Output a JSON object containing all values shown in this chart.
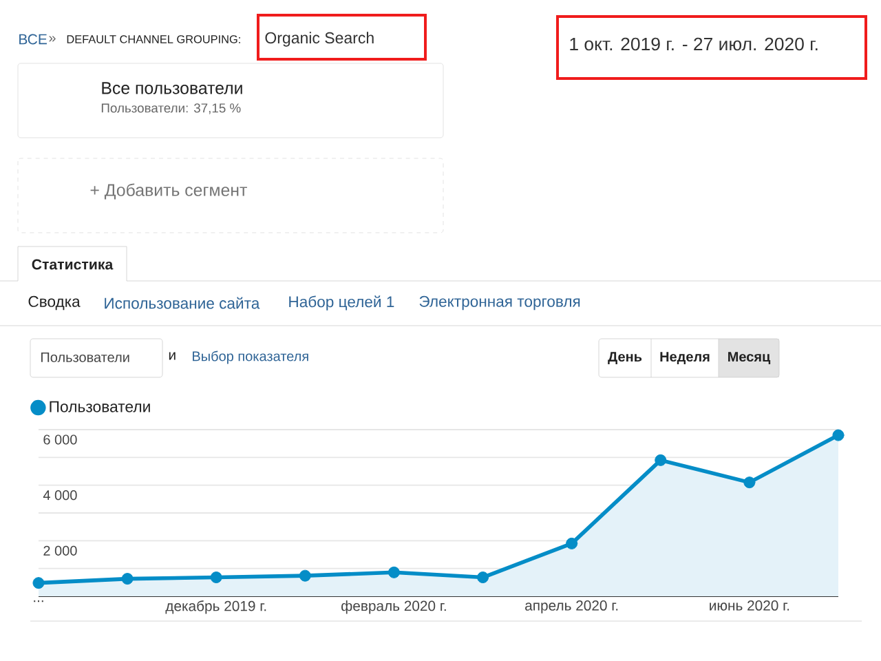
{
  "chart_data": {
    "type": "area",
    "subtitle": "1 окт. 2019 г. - 27 июл. 2020 г.",
    "categories": [
      "...",
      null,
      "декабрь 2019 г.",
      null,
      "февраль 2020 г.",
      null,
      "апрель 2020 г.",
      null,
      "июнь 2020 г.",
      null
    ],
    "series": [
      {
        "name": "Пользователи",
        "color": "#058dc7",
        "values": [
          480,
          630,
          680,
          740,
          860,
          680,
          1900,
          4900,
          4100,
          5800
        ]
      }
    ],
    "ylim": [
      0,
      6000
    ],
    "yticks": [
      {
        "value": 1000,
        "label": null
      },
      {
        "value": 2000,
        "label": "2 000"
      },
      {
        "value": 3000,
        "label": null
      },
      {
        "value": 4000,
        "label": "4 000"
      },
      {
        "value": 5000,
        "label": null
      },
      {
        "value": 6000,
        "label": "6 000"
      }
    ],
    "grid": "y",
    "legend": "top left",
    "marker": "circle",
    "line_style": "solid",
    "annotations": [
      "ВСЕ",
      "»",
      "DEFAULT CHANNEL GROUPING:",
      "Organic Search",
      "Все пользователи",
      "Пользователи: 37,15 %",
      "+ Добавить сегмент",
      "Статистика",
      "Сводка",
      "Использование сайта",
      "Набор целей 1",
      "Электронная торговля",
      "Пользователи",
      "и",
      "Выбор показателя",
      "День",
      "Неделя",
      "Месяц"
    ]
  }
}
